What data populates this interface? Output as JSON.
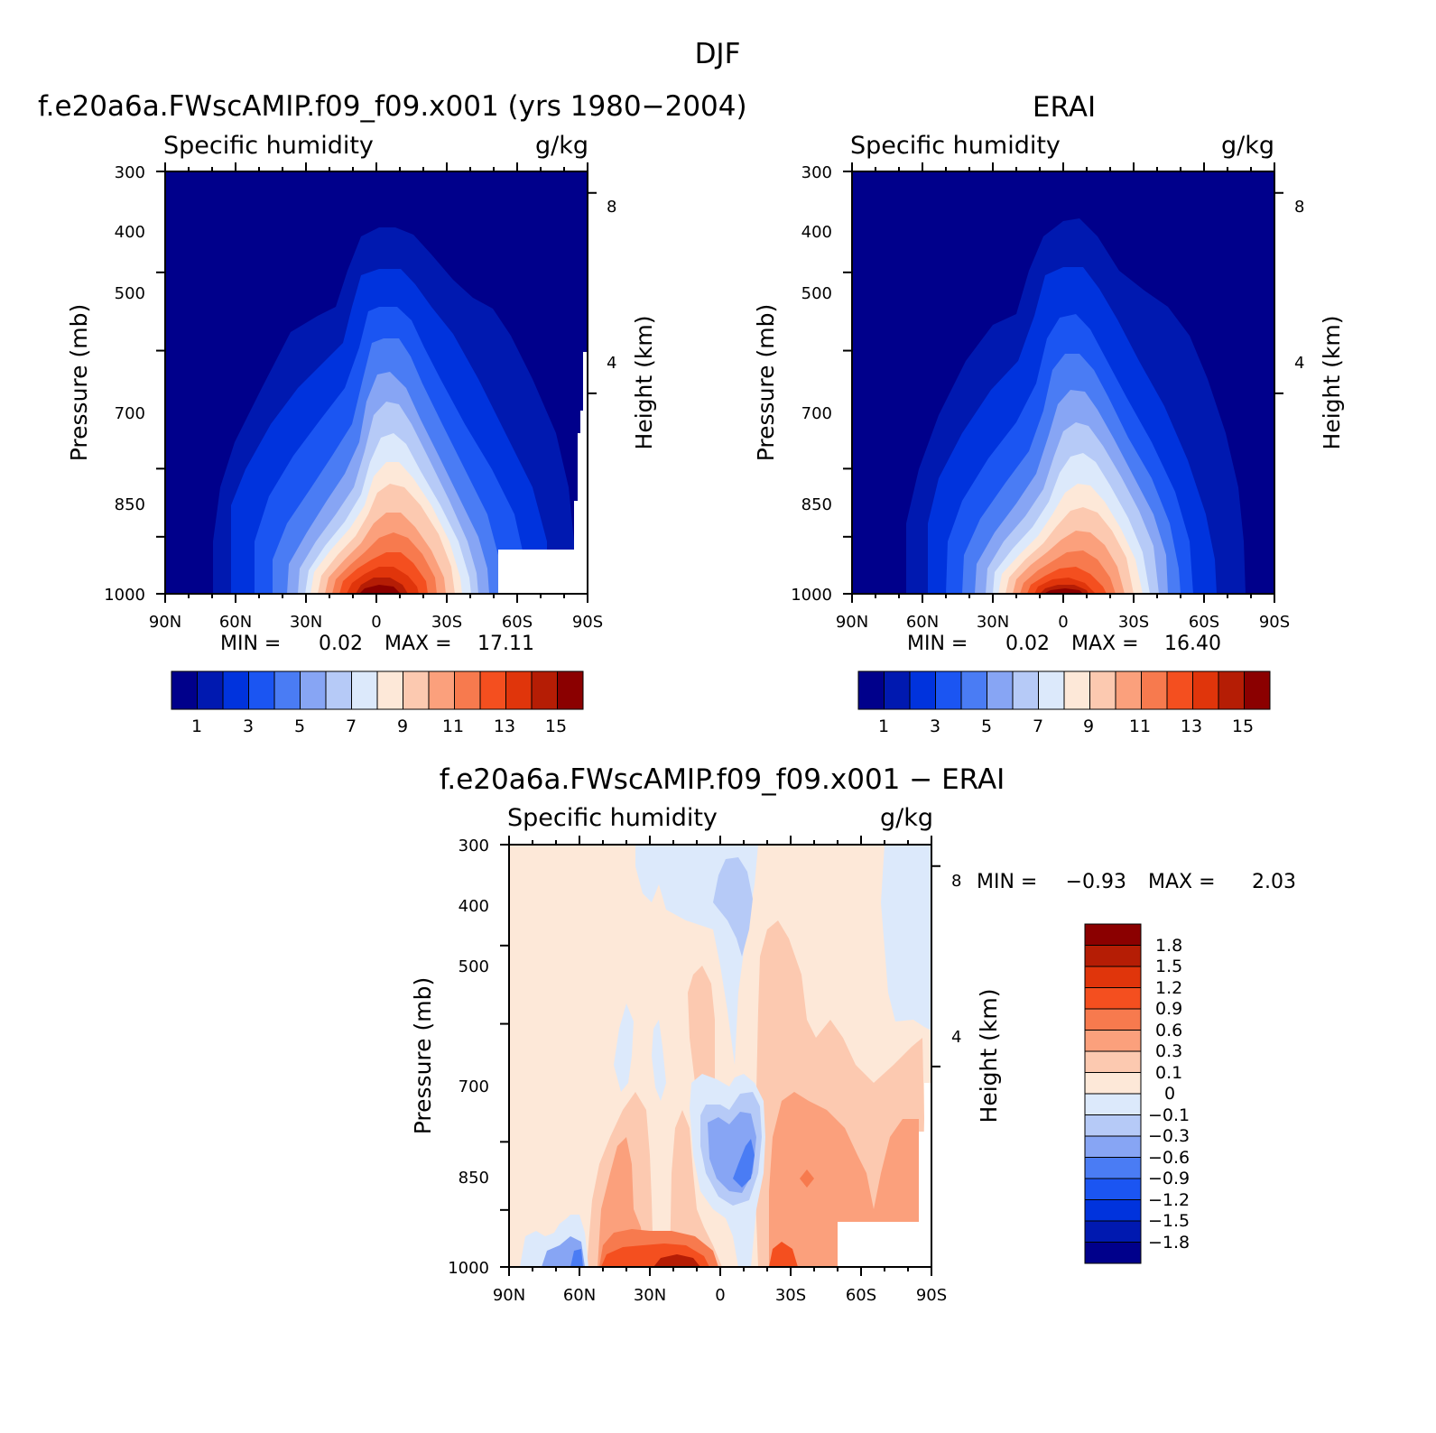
{
  "chart_data": [
    {
      "type": "contour",
      "title": "DJF",
      "left_title": "f.e20a6a.FWscAMIP.f09_f09.x001 (yrs 1980−2004)",
      "variable": "Specific humidity",
      "units": "g/kg",
      "xlabel": "",
      "ylabel": "Pressure (mb)",
      "y2label": "Height (km)",
      "x_ticks": [
        "90N",
        "60N",
        "30N",
        "0",
        "30S",
        "60S",
        "90S"
      ],
      "x_values": [
        90,
        60,
        30,
        0,
        -30,
        -60,
        -90
      ],
      "y_ticks": [
        "300",
        "400",
        "500",
        "700",
        "850",
        "1000"
      ],
      "y_values": [
        300,
        400,
        500,
        700,
        850,
        1000
      ],
      "y2_ticks": [
        "8",
        "4"
      ],
      "y2_values": [
        8,
        4
      ],
      "min_label": "MIN =",
      "min_value": "0.02",
      "max_label": "MAX =",
      "max_value": "17.11",
      "colorbar_labels": [
        "1",
        "3",
        "5",
        "7",
        "9",
        "11",
        "13",
        "15"
      ],
      "peak_latitude": 0,
      "peak_value": 17.11
    },
    {
      "type": "contour",
      "title": "ERAI",
      "variable": "Specific humidity",
      "units": "g/kg",
      "ylabel": "Pressure (mb)",
      "y2label": "Height (km)",
      "x_ticks": [
        "90N",
        "60N",
        "30N",
        "0",
        "30S",
        "60S",
        "90S"
      ],
      "x_values": [
        90,
        60,
        30,
        0,
        -30,
        -60,
        -90
      ],
      "y_ticks": [
        "300",
        "400",
        "500",
        "700",
        "850",
        "1000"
      ],
      "y_values": [
        300,
        400,
        500,
        700,
        850,
        1000
      ],
      "y2_ticks": [
        "8",
        "4"
      ],
      "y2_values": [
        8,
        4
      ],
      "min_label": "MIN =",
      "min_value": "0.02",
      "max_label": "MAX =",
      "max_value": "16.40",
      "colorbar_labels": [
        "1",
        "3",
        "5",
        "7",
        "9",
        "11",
        "13",
        "15"
      ],
      "peak_latitude": 0,
      "peak_value": 16.4
    },
    {
      "type": "contour",
      "title": "f.e20a6a.FWscAMIP.f09_f09.x001 − ERAI",
      "variable": "Specific humidity",
      "units": "g/kg",
      "ylabel": "Pressure (mb)",
      "y2label": "Height (km)",
      "x_ticks": [
        "90N",
        "60N",
        "30N",
        "0",
        "30S",
        "60S",
        "90S"
      ],
      "x_values": [
        90,
        60,
        30,
        0,
        -30,
        -60,
        -90
      ],
      "y_ticks": [
        "300",
        "400",
        "500",
        "700",
        "850",
        "1000"
      ],
      "y_values": [
        300,
        400,
        500,
        700,
        850,
        1000
      ],
      "y2_ticks": [
        "8",
        "4"
      ],
      "y2_values": [
        8,
        4
      ],
      "min_label": "MIN =",
      "min_value": "−0.93",
      "max_label": "MAX =",
      "max_value": "2.03",
      "colorbar_labels": [
        "1.8",
        "1.5",
        "1.2",
        "0.9",
        "0.6",
        "0.3",
        "0.1",
        "0",
        "−0.1",
        "−0.3",
        "−0.6",
        "−0.9",
        "−1.2",
        "−1.5",
        "−1.8"
      ],
      "levels": [
        -1.8,
        -1.5,
        -1.2,
        -0.9,
        -0.6,
        -0.3,
        -0.1,
        0,
        0.1,
        0.3,
        0.6,
        0.9,
        1.2,
        1.5,
        1.8
      ]
    }
  ],
  "colors": {
    "humidity": [
      "#00008b",
      "#0019b0",
      "#0033dd",
      "#1b55f2",
      "#4a7cf4",
      "#87a5f4",
      "#b6caf7",
      "#dce9fb",
      "#fde8d8",
      "#fcc9b0",
      "#fba07c",
      "#f77a4e",
      "#f44f1f",
      "#e0350b",
      "#b51d05",
      "#8b0000"
    ],
    "difference": [
      "#00008b",
      "#0019b0",
      "#0033dd",
      "#1b55f2",
      "#4a7cf4",
      "#87a5f4",
      "#b6caf7",
      "#dce9fb",
      "#fde8d8",
      "#fcc9b0",
      "#fba07c",
      "#f77a4e",
      "#f44f1f",
      "#e0350b",
      "#b51d05",
      "#8b0000"
    ]
  }
}
